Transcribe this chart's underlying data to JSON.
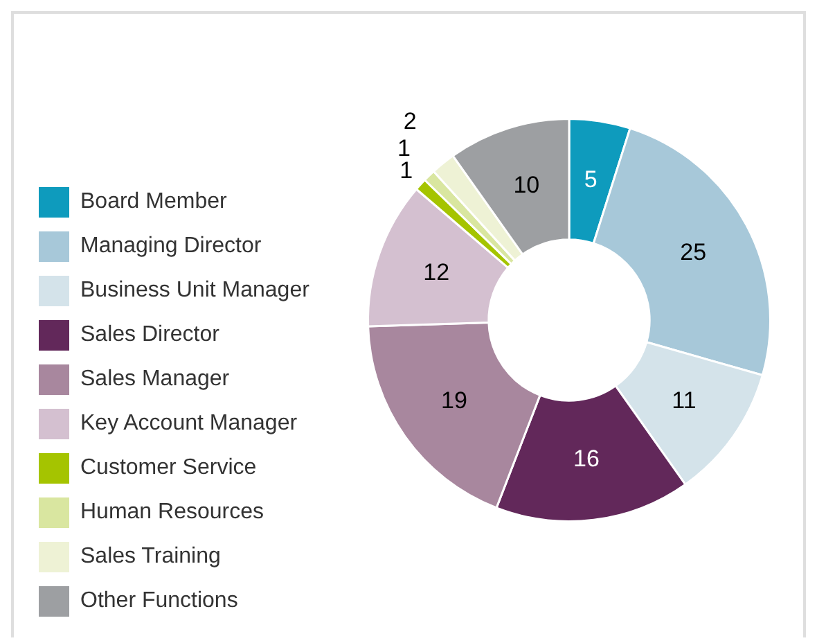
{
  "chart_data": {
    "type": "donut",
    "categories": [
      "Board Member",
      "Managing Director",
      "Business Unit Manager",
      "Sales Director",
      "Sales Manager",
      "Key Account Manager",
      "Customer Service",
      "Human Resources",
      "Sales Training",
      "Other Functions"
    ],
    "values": [
      5,
      25,
      11,
      16,
      19,
      12,
      1,
      1,
      2,
      10
    ],
    "colors": [
      "#0e9bbd",
      "#a7c8d9",
      "#d4e3ea",
      "#62285a",
      "#a8879e",
      "#d4c0d0",
      "#a5c400",
      "#d9e6a0",
      "#eef2d5",
      "#9d9fa2"
    ],
    "data_labels": true,
    "legend": "left"
  }
}
